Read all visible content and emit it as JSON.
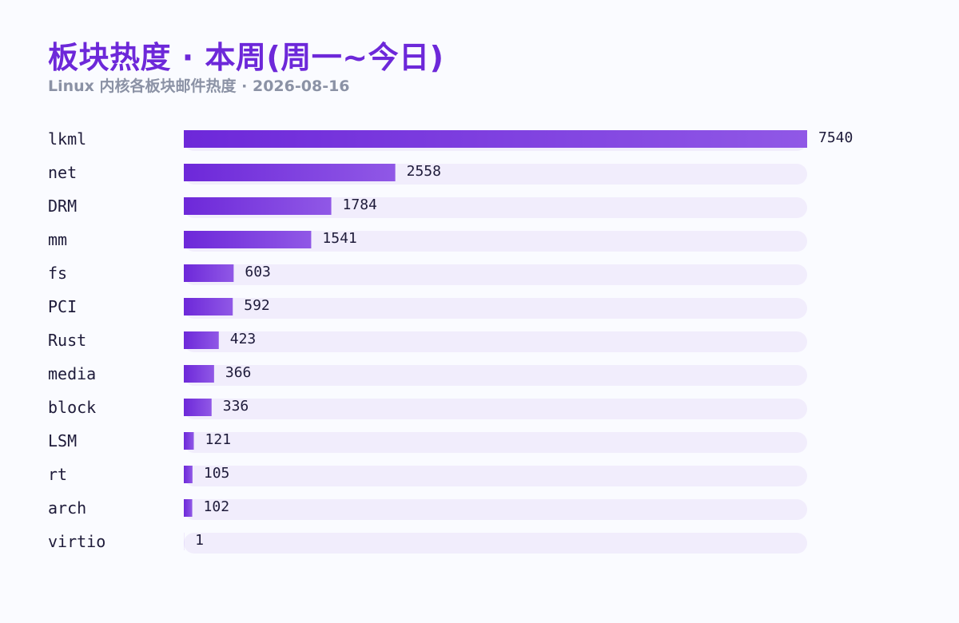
{
  "header": {
    "title": "板块热度 · 本周(周一~今日)",
    "subtitle": "Linux 内核各板块邮件热度 · 2026-08-16"
  },
  "colors": {
    "title": "#6d28d9",
    "subtitle": "#8b92a5",
    "bar_start": "#6d28d9",
    "bar_end": "#9058e6",
    "track": "#f1edfc",
    "text": "#1e1b3a"
  },
  "chart_data": {
    "type": "bar",
    "orientation": "horizontal",
    "title": "板块热度 · 本周(周一~今日)",
    "subtitle": "Linux 内核各板块邮件热度 · 2026-08-16",
    "xlabel": "",
    "ylabel": "",
    "grid": false,
    "legend": "none",
    "xlim": [
      0,
      7540
    ],
    "categories": [
      "lkml",
      "net",
      "DRM",
      "mm",
      "fs",
      "PCI",
      "Rust",
      "media",
      "block",
      "LSM",
      "rt",
      "arch",
      "virtio"
    ],
    "values": [
      7540,
      2558,
      1784,
      1541,
      603,
      592,
      423,
      366,
      336,
      121,
      105,
      102,
      1
    ]
  }
}
